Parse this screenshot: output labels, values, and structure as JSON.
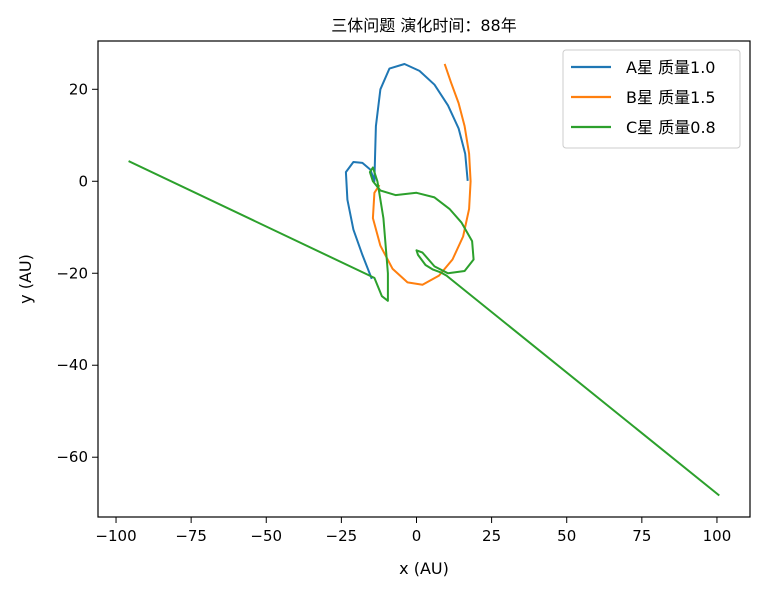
{
  "chart_data": {
    "type": "line",
    "title": "三体问题 演化时间：88年",
    "xlabel": "x (AU)",
    "ylabel": "y (AU)",
    "xlim": [
      -106,
      111
    ],
    "ylim": [
      -73,
      30.5
    ],
    "xticks": [
      -100,
      -75,
      -50,
      -25,
      0,
      25,
      50,
      75,
      100
    ],
    "xtick_labels": [
      "−100",
      "−75",
      "−50",
      "−25",
      "0",
      "25",
      "50",
      "75",
      "100"
    ],
    "yticks": [
      20,
      0,
      -20,
      -40,
      -60
    ],
    "ytick_labels": [
      "20",
      "0",
      "−20",
      "−40",
      "−60"
    ],
    "grid": false,
    "legend_position": "top-right",
    "series": [
      {
        "name": "A星 质量1.0",
        "color": "#1f77b4",
        "points": [
          [
            17,
            0.3
          ],
          [
            16.2,
            6
          ],
          [
            14,
            11.5
          ],
          [
            10.5,
            16.5
          ],
          [
            6,
            21
          ],
          [
            1,
            24
          ],
          [
            -4,
            25.5
          ],
          [
            -9,
            24.5
          ],
          [
            -12,
            20
          ],
          [
            -13.5,
            12
          ],
          [
            -13.8,
            5
          ],
          [
            -14,
            0
          ],
          [
            -15.3,
            2.5
          ],
          [
            -18,
            4
          ],
          [
            -21,
            4.2
          ],
          [
            -23.5,
            2
          ],
          [
            -23,
            -4
          ],
          [
            -21,
            -10.5
          ],
          [
            -18,
            -16
          ],
          [
            -15,
            -21
          ]
        ]
      },
      {
        "name": "B星 质量1.5",
        "color": "#ff7f0e",
        "points": [
          [
            9.5,
            25.3
          ],
          [
            11.5,
            21.5
          ],
          [
            14,
            17
          ],
          [
            16,
            12
          ],
          [
            17.5,
            6
          ],
          [
            18,
            0
          ],
          [
            17.5,
            -6
          ],
          [
            15.5,
            -12
          ],
          [
            12,
            -17
          ],
          [
            7.5,
            -20.5
          ],
          [
            2,
            -22.5
          ],
          [
            -3,
            -22
          ],
          [
            -8,
            -19
          ],
          [
            -12,
            -14
          ],
          [
            -14.5,
            -8
          ],
          [
            -14,
            -2.5
          ],
          [
            -12.5,
            -1
          ]
        ]
      },
      {
        "name": "C星 质量0.8",
        "color": "#2ca02c",
        "points": [
          [
            -95.5,
            4.3
          ],
          [
            -14,
            -21
          ],
          [
            -11.5,
            -25
          ],
          [
            -9.5,
            -26
          ],
          [
            -9.5,
            -20
          ],
          [
            -11,
            -8
          ],
          [
            -13,
            0
          ],
          [
            -14.5,
            3
          ],
          [
            -15.5,
            2
          ],
          [
            -14.5,
            0
          ],
          [
            -12,
            -2
          ],
          [
            -7,
            -3
          ],
          [
            0,
            -2.5
          ],
          [
            6,
            -3.5
          ],
          [
            11,
            -6
          ],
          [
            15,
            -9
          ],
          [
            18.5,
            -13
          ],
          [
            19,
            -17
          ],
          [
            16,
            -19.5
          ],
          [
            10.5,
            -20
          ],
          [
            6,
            -18.5
          ],
          [
            2,
            -15.5
          ],
          [
            0,
            -15
          ],
          [
            0.5,
            -16
          ],
          [
            3,
            -18.2
          ],
          [
            5.5,
            -19.2
          ],
          [
            8,
            -19.8
          ],
          [
            10,
            -20.5
          ],
          [
            100.5,
            -68.2
          ]
        ]
      }
    ]
  }
}
